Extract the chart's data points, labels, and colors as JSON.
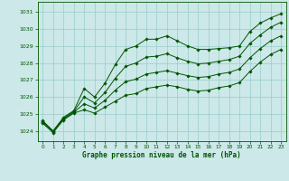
{
  "title": "Graphe pression niveau de la mer (hPa)",
  "bg_color": "#cce8e8",
  "grid_color": "#99cccc",
  "line_color": "#005500",
  "xlim": [
    -0.5,
    23.5
  ],
  "ylim": [
    1023.4,
    1031.6
  ],
  "yticks": [
    1024,
    1025,
    1026,
    1027,
    1028,
    1029,
    1030,
    1031
  ],
  "xticks": [
    0,
    1,
    2,
    3,
    4,
    5,
    6,
    7,
    8,
    9,
    10,
    11,
    12,
    13,
    14,
    15,
    16,
    17,
    18,
    19,
    20,
    21,
    22,
    23
  ],
  "series1_y": [
    1024.6,
    1024.0,
    1024.8,
    1025.2,
    1026.5,
    1026.0,
    1026.8,
    1027.9,
    1028.8,
    1029.0,
    1029.4,
    1029.4,
    1029.6,
    1029.3,
    1029.0,
    1028.8,
    1028.8,
    1028.85,
    1028.9,
    1029.0,
    1029.85,
    1030.35,
    1030.65,
    1030.9
  ],
  "series2_y": [
    1024.55,
    1024.0,
    1024.75,
    1025.15,
    1026.0,
    1025.65,
    1026.25,
    1027.1,
    1027.8,
    1028.0,
    1028.35,
    1028.4,
    1028.55,
    1028.3,
    1028.1,
    1027.95,
    1028.0,
    1028.1,
    1028.2,
    1028.4,
    1029.15,
    1029.65,
    1030.1,
    1030.4
  ],
  "series3_y": [
    1024.5,
    1023.95,
    1024.7,
    1025.1,
    1025.6,
    1025.35,
    1025.8,
    1026.4,
    1026.9,
    1027.05,
    1027.35,
    1027.45,
    1027.55,
    1027.4,
    1027.25,
    1027.15,
    1027.2,
    1027.35,
    1027.45,
    1027.65,
    1028.3,
    1028.85,
    1029.3,
    1029.6
  ],
  "series4_y": [
    1024.45,
    1023.9,
    1024.65,
    1025.05,
    1025.25,
    1025.05,
    1025.4,
    1025.75,
    1026.1,
    1026.2,
    1026.5,
    1026.6,
    1026.7,
    1026.6,
    1026.45,
    1026.35,
    1026.4,
    1026.55,
    1026.65,
    1026.85,
    1027.5,
    1028.05,
    1028.5,
    1028.8
  ]
}
